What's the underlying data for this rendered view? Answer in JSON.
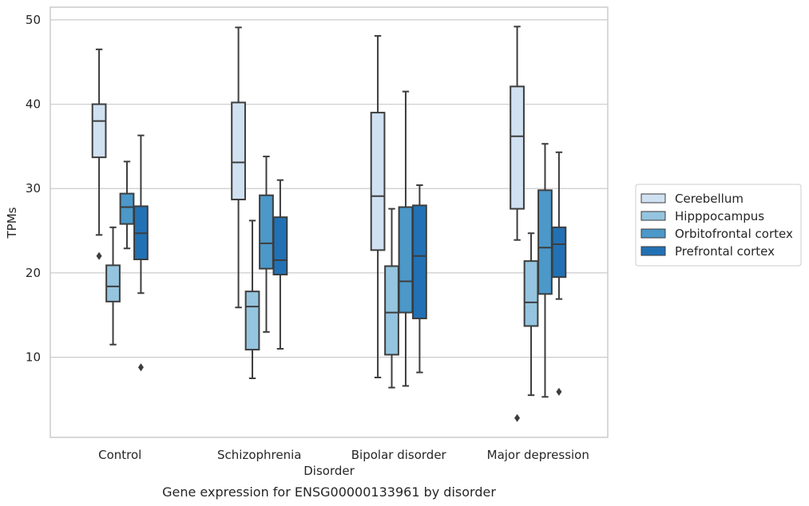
{
  "chart_data": {
    "type": "box",
    "title": "Gene expression for ENSG00000133961 by disorder",
    "xlabel": "Disorder",
    "ylabel": "TPMs",
    "ylim": [
      0.5,
      51.5
    ],
    "yticks": [
      10,
      20,
      30,
      40,
      50
    ],
    "categories": [
      "Control",
      "Schizophrenia",
      "Bipolar disorder",
      "Major depression"
    ],
    "grid": "horizontal",
    "legend_position": "right",
    "series": [
      {
        "name": "Cerebellum",
        "color": "#d0e1f2",
        "boxes": [
          {
            "whislo": 24.5,
            "q1": 33.7,
            "med": 38.0,
            "q3": 40.0,
            "whishi": 46.5,
            "fliers": [
              22.0
            ]
          },
          {
            "whislo": 15.9,
            "q1": 28.7,
            "med": 33.1,
            "q3": 40.2,
            "whishi": 49.1,
            "fliers": []
          },
          {
            "whislo": 7.6,
            "q1": 22.7,
            "med": 29.1,
            "q3": 39.0,
            "whishi": 48.1,
            "fliers": []
          },
          {
            "whislo": 23.9,
            "q1": 27.6,
            "med": 36.2,
            "q3": 42.1,
            "whishi": 49.2,
            "fliers": [
              2.8
            ]
          }
        ]
      },
      {
        "name": "Hipppocampus",
        "color": "#94c4df",
        "boxes": [
          {
            "whislo": 11.5,
            "q1": 16.6,
            "med": 18.4,
            "q3": 20.9,
            "whishi": 25.4,
            "fliers": []
          },
          {
            "whislo": 7.5,
            "q1": 10.9,
            "med": 16.0,
            "q3": 17.8,
            "whishi": 26.2,
            "fliers": []
          },
          {
            "whislo": 6.4,
            "q1": 10.3,
            "med": 15.3,
            "q3": 20.8,
            "whishi": 27.6,
            "fliers": []
          },
          {
            "whislo": 5.5,
            "q1": 13.7,
            "med": 16.5,
            "q3": 21.4,
            "whishi": 24.7,
            "fliers": []
          }
        ]
      },
      {
        "name": "Orbitofrontal cortex",
        "color": "#4b98c9",
        "boxes": [
          {
            "whislo": 22.9,
            "q1": 25.8,
            "med": 27.8,
            "q3": 29.4,
            "whishi": 33.2,
            "fliers": []
          },
          {
            "whislo": 13.0,
            "q1": 20.5,
            "med": 23.5,
            "q3": 29.2,
            "whishi": 33.8,
            "fliers": []
          },
          {
            "whislo": 6.6,
            "q1": 15.3,
            "med": 19.0,
            "q3": 27.8,
            "whishi": 41.5,
            "fliers": []
          },
          {
            "whislo": 5.3,
            "q1": 17.5,
            "med": 23.0,
            "q3": 29.8,
            "whishi": 35.3,
            "fliers": []
          }
        ]
      },
      {
        "name": "Prefrontal cortex",
        "color": "#2271b5",
        "boxes": [
          {
            "whislo": 17.6,
            "q1": 21.6,
            "med": 24.7,
            "q3": 27.9,
            "whishi": 36.3,
            "fliers": [
              8.8
            ]
          },
          {
            "whislo": 11.0,
            "q1": 19.8,
            "med": 21.5,
            "q3": 26.6,
            "whishi": 31.0,
            "fliers": []
          },
          {
            "whislo": 8.2,
            "q1": 14.6,
            "med": 22.0,
            "q3": 28.0,
            "whishi": 30.4,
            "fliers": []
          },
          {
            "whislo": 16.9,
            "q1": 19.5,
            "med": 23.4,
            "q3": 25.4,
            "whishi": 34.3,
            "fliers": [
              5.9
            ]
          }
        ]
      }
    ]
  }
}
